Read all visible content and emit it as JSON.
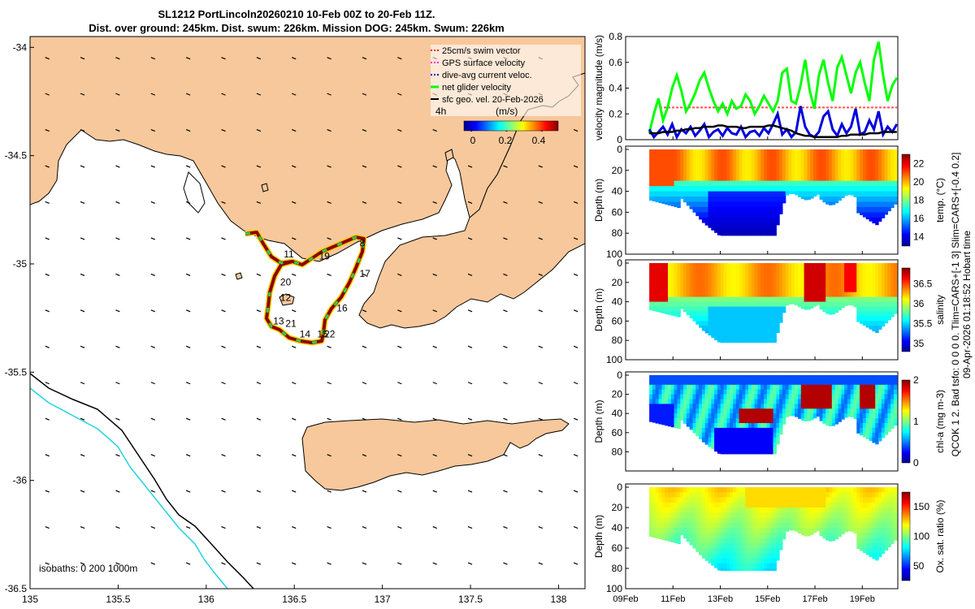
{
  "title_line1": "SL1212 PortLincoln20260210 10-Feb 00Z to 20-Feb 11Z.",
  "title_line2": "Dist. over ground: 245km. Dist. swum: 226km. Mission DOG: 245km. Swum: 226km",
  "side_label_right": "09-Apr-2026 01:18:52 Hobart time",
  "side_label_left": "QCOK 1  2. Bad tsfo: 0  0  0  0. Tlim=CARS+[-1 3] Slim=CARS+[-0.4 0.2]",
  "colors": {
    "land": "#f7c89b",
    "sea": "#ffffff",
    "isobath_200": "#000000",
    "isobath_1000": "#22d3e0",
    "track": "#8b0000",
    "green": "#00ff00",
    "blue": "#0000dd",
    "red": "#ff0000",
    "magenta": "#ff00ff"
  },
  "chart_data": [
    {
      "type": "map",
      "name": "glider-track-map",
      "xlim": [
        135,
        138.15
      ],
      "ylim": [
        -36.5,
        -33.95
      ],
      "xticks": [
        "135",
        "135.5",
        "136",
        "136.5",
        "137",
        "137.5",
        "138"
      ],
      "yticks": [
        "-34",
        "-34.5",
        "-35",
        "-35.5",
        "-36",
        "-36.5"
      ],
      "legend": [
        "25cm/s swim vector",
        "GPS surface velocity",
        "dive-avg current veloc.",
        "net glider velocity",
        "sfc geo. vel. 20-Feb-2026"
      ],
      "legend_extra": "4h",
      "colorbar": {
        "label": "(m/s)",
        "ticks": [
          "0",
          "0.2",
          "0.4"
        ],
        "range": [
          0,
          0.5
        ]
      },
      "isobath_text": "isobaths: 0  200  1000m",
      "track_labels": [
        {
          "text": "8",
          "lon": 136.87,
          "lat": -34.92
        },
        {
          "text": "11",
          "lon": 136.44,
          "lat": -34.97
        },
        {
          "text": "19",
          "lon": 136.64,
          "lat": -34.98
        },
        {
          "text": "17",
          "lon": 136.87,
          "lat": -35.06
        },
        {
          "text": "20",
          "lon": 136.42,
          "lat": -35.1
        },
        {
          "text": "12",
          "lon": 136.42,
          "lat": -35.17
        },
        {
          "text": "16",
          "lon": 136.74,
          "lat": -35.22
        },
        {
          "text": "13",
          "lon": 136.38,
          "lat": -35.28
        },
        {
          "text": "21",
          "lon": 136.45,
          "lat": -35.29
        },
        {
          "text": "14",
          "lon": 136.53,
          "lat": -35.34
        },
        {
          "text": "15",
          "lon": 136.63,
          "lat": -35.34
        },
        {
          "text": "22",
          "lon": 136.67,
          "lat": -35.34
        }
      ]
    },
    {
      "type": "line",
      "name": "velocity-magnitude",
      "ylabel": "velocity magnitude (m/s)",
      "ylim": [
        0,
        0.8
      ],
      "yticks": [
        "0",
        "0.2",
        "0.4",
        "0.6",
        "0.8"
      ],
      "swim_ref": 0.25,
      "series": [
        {
          "name": "net glider velocity",
          "color": "#00ff00",
          "values": [
            0.05,
            0.2,
            0.32,
            0.15,
            0.25,
            0.4,
            0.5,
            0.38,
            0.22,
            0.28,
            0.36,
            0.46,
            0.52,
            0.4,
            0.3,
            0.22,
            0.28,
            0.2,
            0.3,
            0.24,
            0.26,
            0.35,
            0.3,
            0.2,
            0.26,
            0.34,
            0.28,
            0.22,
            0.3,
            0.52,
            0.55,
            0.3,
            0.28,
            0.42,
            0.62,
            0.38,
            0.24,
            0.5,
            0.62,
            0.44,
            0.3,
            0.56,
            0.64,
            0.5,
            0.36,
            0.52,
            0.6,
            0.44,
            0.3,
            0.62,
            0.76,
            0.5,
            0.3,
            0.42,
            0.48
          ]
        },
        {
          "name": "dive-avg current veloc.",
          "color": "#0000dd",
          "values": [
            0.08,
            0.02,
            0.06,
            0.1,
            0.04,
            0.12,
            0.02,
            0.08,
            0.05,
            0.1,
            0.03,
            0.07,
            0.12,
            0.02,
            0.06,
            0.08,
            0.03,
            0.09,
            0.05,
            0.04,
            0.1,
            0.02,
            0.06,
            0.07,
            0.03,
            0.09,
            0.05,
            0.12,
            0.2,
            0.04,
            0.08,
            0.02,
            0.06,
            0.26,
            0.1,
            0.04,
            0.02,
            0.06,
            0.18,
            0.22,
            0.08,
            0.03,
            0.12,
            0.05,
            0.1,
            0.24,
            0.04,
            0.06,
            0.15,
            0.08,
            0.22,
            0.04,
            0.1,
            0.06,
            0.12
          ]
        },
        {
          "name": "sfc geo. vel.",
          "color": "#000000",
          "values": [
            0.05,
            0.05,
            0.05,
            0.06,
            0.06,
            0.06,
            0.07,
            0.07,
            0.08,
            0.08,
            0.09,
            0.09,
            0.1,
            0.1,
            0.1,
            0.11,
            0.11,
            0.1,
            0.1,
            0.1,
            0.09,
            0.09,
            0.1,
            0.1,
            0.1,
            0.1,
            0.11,
            0.11,
            0.1,
            0.09,
            0.08,
            0.07,
            0.05,
            0.04,
            0.03,
            0.03,
            0.02,
            0.02,
            0.02,
            0.02,
            0.02,
            0.02,
            0.03,
            0.03,
            0.04,
            0.04,
            0.04,
            0.04,
            0.05,
            0.05,
            0.05,
            0.06,
            0.06,
            0.06,
            0.06
          ]
        }
      ]
    },
    {
      "type": "heatmap",
      "name": "temperature-section",
      "ylabel": "Depth (m)",
      "clabel": "temp. (°C)",
      "yticks": [
        "0",
        "20",
        "40",
        "60",
        "80",
        "100"
      ],
      "cticks": [
        "14",
        "16",
        "18",
        "20",
        "22"
      ],
      "crange": [
        13,
        23
      ]
    },
    {
      "type": "heatmap",
      "name": "salinity-section",
      "ylabel": "Depth (m)",
      "clabel": "salinity",
      "yticks": [
        "0",
        "20",
        "40",
        "60",
        "80",
        "100"
      ],
      "cticks": [
        "35",
        "35.5",
        "36",
        "36.5"
      ],
      "crange": [
        34.8,
        36.9
      ]
    },
    {
      "type": "heatmap",
      "name": "chlorophyll-section",
      "ylabel": "Depth (m)",
      "clabel": "chl-a (mg m-3)",
      "yticks": [
        "0",
        "20",
        "40",
        "60",
        "80"
      ],
      "cticks": [
        "0",
        "1",
        "2"
      ],
      "crange": [
        0,
        2
      ]
    },
    {
      "type": "heatmap",
      "name": "oxygen-section",
      "ylabel": "Depth (m)",
      "clabel": "Ox. sat. ratio (%)",
      "yticks": [
        "0",
        "20",
        "40",
        "60",
        "80",
        "100"
      ],
      "cticks": [
        "50",
        "100",
        "150"
      ],
      "crange": [
        25,
        175
      ]
    }
  ],
  "time_axis": {
    "xlim_days": [
      9,
      20.5
    ],
    "ticks": [
      "09Feb",
      "11Feb",
      "13Feb",
      "15Feb",
      "17Feb",
      "19Feb"
    ],
    "tick_days": [
      9,
      11,
      13,
      15,
      17,
      19
    ],
    "data_start_day": 10,
    "data_end_day": 20.46
  }
}
